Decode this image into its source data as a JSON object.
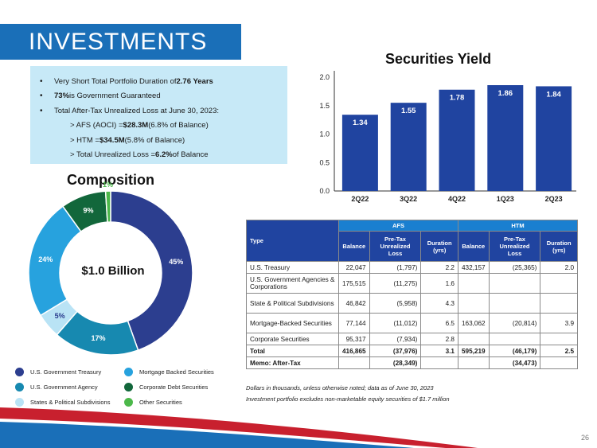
{
  "header": {
    "title": "INVESTMENTS"
  },
  "bullets": [
    {
      "pre": "Very Short Total Portfolio Duration of ",
      "bold": "2.76 Years",
      "post": ""
    },
    {
      "pre": "",
      "bold": "73%",
      "post": " is Government Guaranteed"
    },
    {
      "pre": "Total After-Tax Unrealized Loss at June 30, 2023:",
      "bold": "",
      "post": ""
    }
  ],
  "sub_bullets": [
    {
      "pre": "> AFS (AOCI) = ",
      "bold": "$28.3M",
      "post": " (6.8% of Balance)"
    },
    {
      "pre": "> HTM = ",
      "bold": "$34.5M",
      "post": " (5.8% of Balance)"
    },
    {
      "pre": "> Total Unrealized Loss = ",
      "bold": "6.2%",
      "post": " of Balance"
    }
  ],
  "composition": {
    "title": "Composition",
    "center": "$1.0 Billion",
    "slices": [
      {
        "name": "U.S. Government Treasury",
        "label": "45%",
        "value": 45,
        "color": "#2c3e8f"
      },
      {
        "name": "U.S. Government Agency",
        "label": "17%",
        "value": 17,
        "color": "#1789b0"
      },
      {
        "name": "States & Political Subdivisions",
        "label": "5%",
        "value": 5,
        "color": "#b9e3f5"
      },
      {
        "name": "Mortgage Backed Securities",
        "label": "24%",
        "value": 24,
        "color": "#27a2de"
      },
      {
        "name": "Corporate Debt Securities",
        "label": "9%",
        "value": 9,
        "color": "#12673b"
      },
      {
        "name": "Other Securities",
        "label": "1%",
        "value": 1,
        "color": "#4cb84a"
      }
    ]
  },
  "chart_data": {
    "type": "bar",
    "title": "Securities Yield",
    "categories": [
      "2Q22",
      "3Q22",
      "4Q22",
      "1Q23",
      "2Q23"
    ],
    "values": [
      1.34,
      1.55,
      1.78,
      1.86,
      1.84
    ],
    "ylim": [
      0,
      2.0
    ],
    "yticks": [
      "0.0",
      "0.5",
      "1.0",
      "1.5",
      "2.0"
    ],
    "bar_color": "#2044a0"
  },
  "table": {
    "type_header": "Type",
    "afs_header": "AFS",
    "htm_header": "HTM",
    "sub_headers": [
      "Balance",
      "Pre-Tax Unrealized Loss",
      "Duration (yrs)",
      "Balance",
      "Pre-Tax Unrealized Loss",
      "Duration (yrs)"
    ],
    "rows": [
      {
        "type": "U.S. Treasury",
        "cells": [
          "22,047",
          "(1,797)",
          "2.2",
          "432,157",
          "(25,365)",
          "2.0"
        ]
      },
      {
        "type": "U.S. Government Agencies & Corporations",
        "cells": [
          "175,515",
          "(11,275)",
          "1.6",
          "",
          "",
          ""
        ]
      },
      {
        "type": "State & Political Subdivisions",
        "cells": [
          "46,842",
          "(5,958)",
          "4.3",
          "",
          "",
          ""
        ]
      },
      {
        "type": "Mortgage-Backed Securities",
        "cells": [
          "77,144",
          "(11,012)",
          "6.5",
          "163,062",
          "(20,814)",
          "3.9"
        ]
      },
      {
        "type": "Corporate Securities",
        "cells": [
          "95,317",
          "(7,934)",
          "2.8",
          "",
          "",
          ""
        ]
      },
      {
        "type": "Total",
        "cells": [
          "416,865",
          "(37,976)",
          "3.1",
          "595,219",
          "(46,179)",
          "2.5"
        ]
      },
      {
        "type": "Memo: After-Tax",
        "cells": [
          "",
          "(28,349)",
          "",
          "",
          "(34,473)",
          ""
        ]
      }
    ]
  },
  "notes": [
    "Dollars in thousands, unless otherwise noted; data as of June 30, 2023",
    "Investment portfolio excludes non-marketable equity securities of $1.7 million"
  ],
  "page_number": "26"
}
